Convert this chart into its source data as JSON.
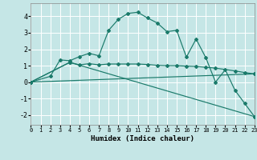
{
  "xlabel": "Humidex (Indice chaleur)",
  "bg_color": "#c5e6e6",
  "line_color": "#1a7a6a",
  "grid_color": "#ffffff",
  "xlim": [
    0,
    23
  ],
  "ylim": [
    -2.6,
    4.8
  ],
  "xticks": [
    0,
    1,
    2,
    3,
    4,
    5,
    6,
    7,
    8,
    9,
    10,
    11,
    12,
    13,
    14,
    15,
    16,
    17,
    18,
    19,
    20,
    21,
    22,
    23
  ],
  "yticks": [
    -2,
    -1,
    0,
    1,
    2,
    3,
    4
  ],
  "line1_x": [
    0,
    2,
    3,
    4,
    5,
    6,
    7,
    8,
    9,
    10,
    11,
    12,
    13,
    14,
    15,
    16,
    17,
    18,
    19,
    20,
    21,
    22,
    23
  ],
  "line1_y": [
    0.0,
    0.35,
    1.35,
    1.3,
    1.55,
    1.75,
    1.6,
    3.15,
    3.82,
    4.18,
    4.25,
    3.9,
    3.6,
    3.07,
    3.15,
    1.52,
    2.62,
    1.48,
    0.0,
    0.75,
    -0.5,
    -1.3,
    -2.1
  ],
  "line2_x": [
    0,
    4,
    5,
    6,
    7,
    8,
    9,
    10,
    11,
    12,
    13,
    14,
    15,
    16,
    17,
    18,
    19,
    21,
    22,
    23
  ],
  "line2_y": [
    0.0,
    1.2,
    1.05,
    1.12,
    1.05,
    1.1,
    1.1,
    1.1,
    1.1,
    1.07,
    1.02,
    1.0,
    1.0,
    0.97,
    0.95,
    0.9,
    0.85,
    0.68,
    0.58,
    0.5
  ],
  "line3_x": [
    0,
    4,
    23
  ],
  "line3_y": [
    0.0,
    1.2,
    -2.1
  ],
  "line4_x": [
    0,
    23
  ],
  "line4_y": [
    0.0,
    0.5
  ]
}
